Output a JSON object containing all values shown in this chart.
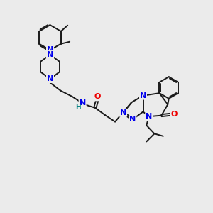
{
  "background_color": "#ebebeb",
  "bond_color": "#1a1a1a",
  "N_color": "#0000ee",
  "O_color": "#ee0000",
  "H_color": "#008080",
  "font_size_atom": 8.0,
  "line_width": 1.4,
  "figsize": [
    3.0,
    3.0
  ],
  "dpi": 100,
  "xlim": [
    0,
    10
  ],
  "ylim": [
    0,
    10
  ]
}
